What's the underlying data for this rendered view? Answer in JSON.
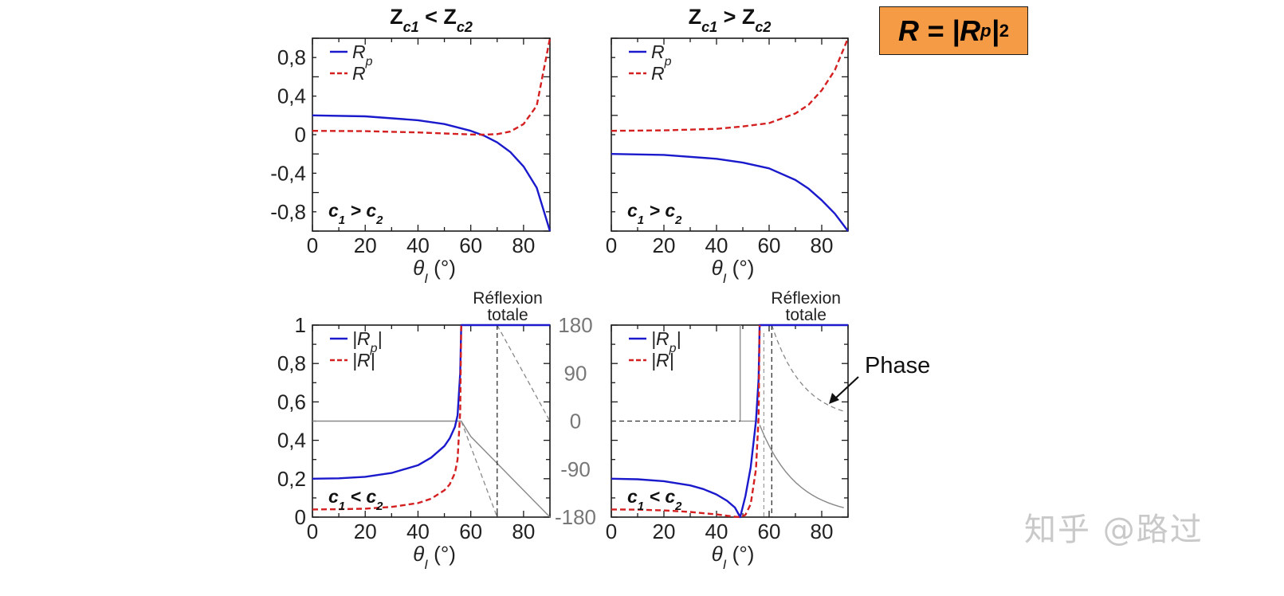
{
  "formula": {
    "text": "R = |R",
    "sub": "p",
    "after": "|",
    "sup": "2"
  },
  "watermark": "知乎 @路过",
  "phase_label": "Phase",
  "colors": {
    "Rp": "#1a1acc",
    "R": "#d42020",
    "phase": "#777777",
    "box": "#f59a45"
  },
  "chart_data": [
    {
      "id": "top-left",
      "type": "line",
      "title": "Z_c1 < Z_c2",
      "xlabel": "θ_I (°)",
      "xlim": [
        0,
        90
      ],
      "ylim": [
        -1,
        1
      ],
      "x_ticks": [
        0,
        20,
        40,
        60,
        80
      ],
      "y_ticks": [
        0.8,
        0.4,
        0,
        -0.4,
        -0.8
      ],
      "y_tick_labels": [
        "0,8",
        "0,4",
        "0",
        "-0,4",
        "-0,8"
      ],
      "legend": [
        "R_p",
        "R"
      ],
      "annotation": "c1 > c2",
      "series": [
        {
          "name": "R_p",
          "x": [
            0,
            20,
            40,
            50,
            60,
            65,
            70,
            75,
            80,
            85,
            90
          ],
          "values": [
            0.2,
            0.19,
            0.15,
            0.11,
            0.04,
            -0.01,
            -0.08,
            -0.18,
            -0.33,
            -0.55,
            -1.0
          ]
        },
        {
          "name": "R",
          "x": [
            0,
            20,
            40,
            50,
            60,
            65,
            70,
            75,
            80,
            85,
            90
          ],
          "values": [
            0.04,
            0.036,
            0.023,
            0.012,
            0.002,
            0.0,
            0.006,
            0.032,
            0.11,
            0.3,
            1.0
          ]
        }
      ]
    },
    {
      "id": "top-right",
      "type": "line",
      "title": "Z_c1 > Z_c2",
      "xlabel": "θ_I (°)",
      "xlim": [
        0,
        90
      ],
      "ylim": [
        -1,
        1
      ],
      "x_ticks": [
        0,
        20,
        40,
        60,
        80
      ],
      "legend": [
        "R_p",
        "R"
      ],
      "annotation": "c1 > c2",
      "series": [
        {
          "name": "R_p",
          "x": [
            0,
            20,
            40,
            50,
            60,
            70,
            75,
            80,
            85,
            90
          ],
          "values": [
            -0.2,
            -0.21,
            -0.25,
            -0.29,
            -0.35,
            -0.47,
            -0.56,
            -0.68,
            -0.82,
            -1.0
          ]
        },
        {
          "name": "R",
          "x": [
            0,
            20,
            40,
            50,
            60,
            70,
            75,
            80,
            85,
            90
          ],
          "values": [
            0.04,
            0.045,
            0.06,
            0.085,
            0.12,
            0.22,
            0.31,
            0.46,
            0.67,
            1.0
          ]
        }
      ]
    },
    {
      "id": "bottom-left",
      "type": "line",
      "xlabel": "θ_I (°)",
      "xlim": [
        0,
        90
      ],
      "ylim": [
        0,
        1
      ],
      "x_ticks": [
        0,
        20,
        40,
        60,
        80
      ],
      "y_ticks": [
        1,
        0.8,
        0.6,
        0.4,
        0.2,
        0
      ],
      "y_tick_labels": [
        "1",
        "0,8",
        "0,6",
        "0,4",
        "0,2",
        "0"
      ],
      "y2_ticks": [
        180,
        90,
        0,
        -90,
        -180
      ],
      "y2_lim": [
        -180,
        180
      ],
      "legend": [
        "|R_p|",
        "|R|"
      ],
      "annotation": "c1 < c2",
      "region_label": [
        "Réflexion",
        "totale"
      ],
      "critical_angle": 56.4,
      "series": [
        {
          "name": "|R_p|",
          "x": [
            0,
            10,
            20,
            30,
            40,
            45,
            50,
            52,
            54,
            55,
            56,
            56.4,
            60,
            70,
            80,
            90
          ],
          "values": [
            0.2,
            0.202,
            0.21,
            0.23,
            0.27,
            0.31,
            0.37,
            0.41,
            0.47,
            0.53,
            0.75,
            1,
            1,
            1,
            1,
            1
          ]
        },
        {
          "name": "|R|",
          "x": [
            0,
            10,
            20,
            30,
            40,
            45,
            50,
            52,
            54,
            55,
            56,
            56.4
          ],
          "values": [
            0.04,
            0.041,
            0.044,
            0.053,
            0.073,
            0.096,
            0.14,
            0.17,
            0.23,
            0.3,
            0.55,
            1
          ]
        }
      ]
    },
    {
      "id": "bottom-right",
      "type": "line",
      "xlabel": "θ_I (°)",
      "xlim": [
        0,
        90
      ],
      "ylim": [
        0,
        1
      ],
      "x_ticks": [
        0,
        20,
        40,
        60,
        80
      ],
      "legend": [
        "|R_p|",
        "|R|"
      ],
      "annotation": "c1 < c2",
      "region_label": [
        "Réflexion",
        "totale"
      ],
      "critical_angle": 56.4,
      "series": [
        {
          "name": "|R_p|",
          "x": [
            0,
            10,
            20,
            30,
            35,
            40,
            44,
            47,
            49,
            51,
            53,
            55,
            56,
            56.4,
            60,
            70,
            80,
            90
          ],
          "values": [
            0.2,
            0.197,
            0.187,
            0.165,
            0.146,
            0.118,
            0.085,
            0.05,
            0.0,
            0.11,
            0.26,
            0.5,
            0.72,
            1,
            1,
            1,
            1,
            1
          ]
        },
        {
          "name": "|R|",
          "x": [
            0,
            10,
            20,
            30,
            40,
            44,
            47,
            49,
            51,
            53,
            55,
            56,
            56.4
          ],
          "values": [
            0.04,
            0.039,
            0.035,
            0.027,
            0.014,
            0.007,
            0.002,
            0.0,
            0.012,
            0.068,
            0.25,
            0.52,
            1
          ]
        }
      ]
    }
  ]
}
